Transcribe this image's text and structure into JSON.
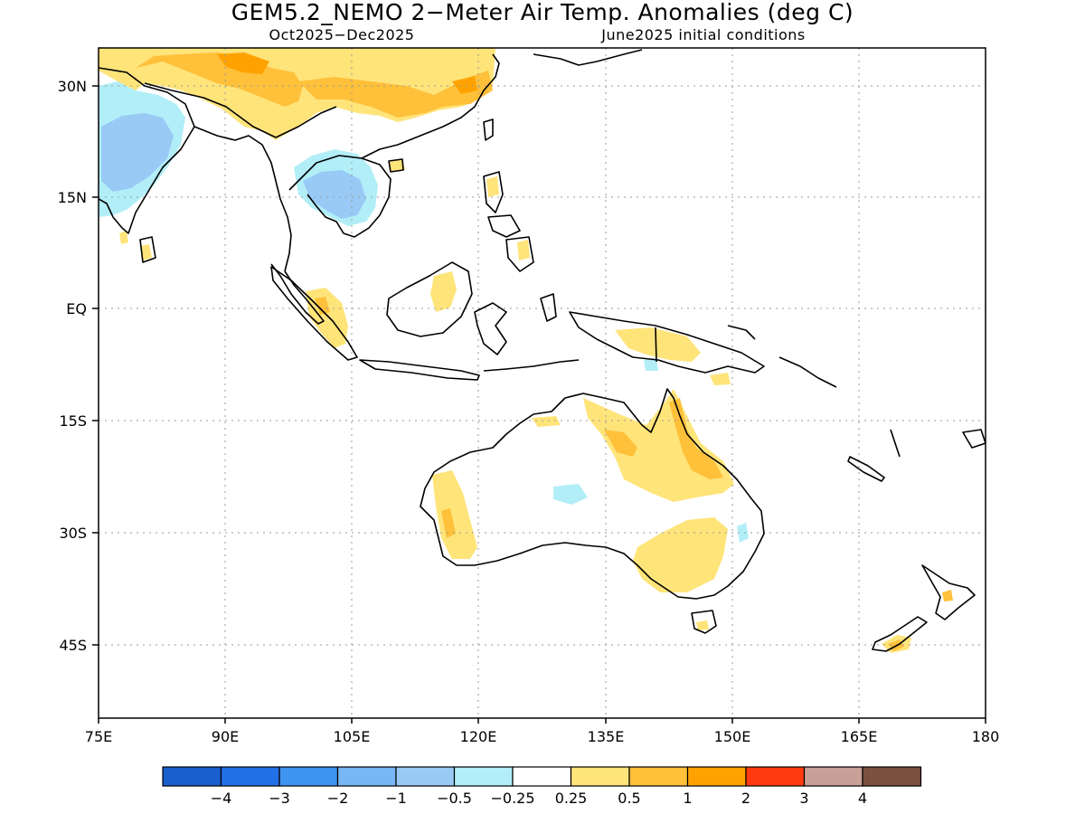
{
  "title": "GEM5.2_NEMO 2−Meter Air Temp. Anomalies (deg C)",
  "subtitle_left": "Oct2025−Dec2025",
  "subtitle_right": "June2025 initial conditions",
  "lon_labels": [
    "75E",
    "90E",
    "105E",
    "120E",
    "135E",
    "150E",
    "165E",
    "180"
  ],
  "lat_labels": [
    "30N",
    "15N",
    "EQ",
    "15S",
    "30S",
    "45S"
  ],
  "colorbar": {
    "colors": [
      "#1a5fcd",
      "#2270e6",
      "#3f94f2",
      "#78b6f5",
      "#99caf6",
      "#b2eef8",
      "#ffffff",
      "#ffe47a",
      "#ffc03a",
      "#ffa200",
      "#ff3a10",
      "#c9a097",
      "#7a5040"
    ],
    "labels": [
      "−4",
      "−3",
      "−2",
      "−1",
      "−0.5",
      "−0.25",
      "0.25",
      "0.5",
      "1",
      "2",
      "3",
      "4"
    ]
  },
  "legend_colors": {
    "warm_weak": "#ffe47a",
    "warm_mid": "#ffc03a",
    "warm_strong": "#ffa200",
    "cool_weak": "#b2eef8",
    "cool_mid": "#99caf6"
  }
}
